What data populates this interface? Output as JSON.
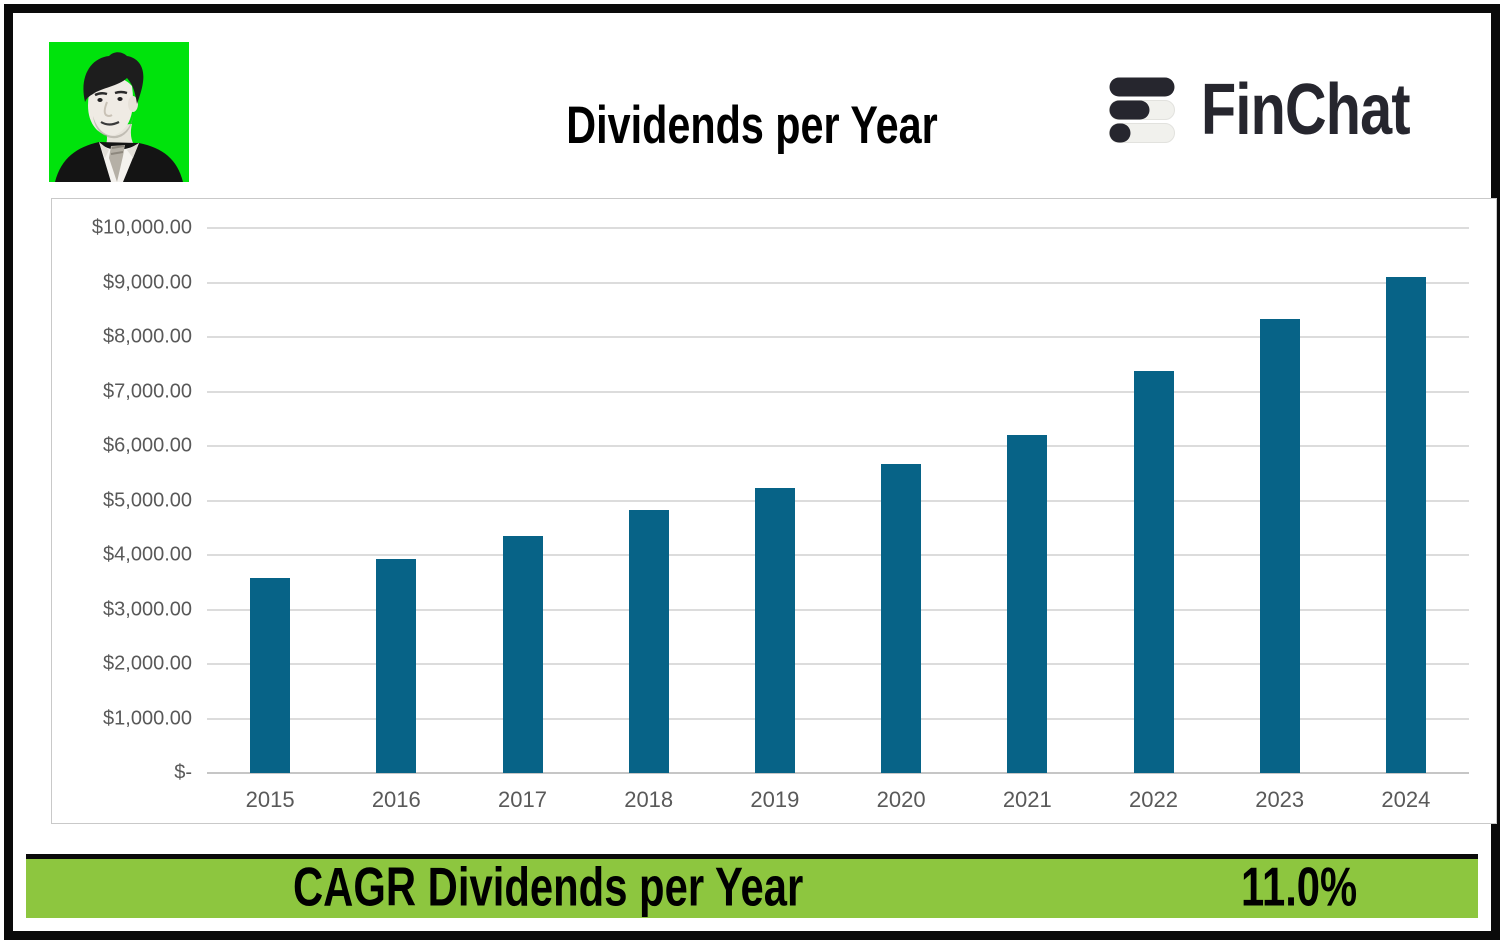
{
  "header": {
    "title": "Dividends per Year",
    "brand": "FinChat"
  },
  "chart_data": {
    "type": "bar",
    "title": "Dividends per Year",
    "categories": [
      "2015",
      "2016",
      "2017",
      "2018",
      "2019",
      "2020",
      "2021",
      "2022",
      "2023",
      "2024"
    ],
    "values": [
      3570,
      3930,
      4340,
      4830,
      5230,
      5670,
      6200,
      7370,
      8330,
      9110
    ],
    "series_name": "Dividends per Year",
    "xlabel": "",
    "ylabel": "",
    "ylim": [
      0,
      10000
    ],
    "ytick_step": 1000,
    "ytick_labels": [
      "$-",
      "$1,000.00",
      "$2,000.00",
      "$3,000.00",
      "$4,000.00",
      "$5,000.00",
      "$6,000.00",
      "$7,000.00",
      "$8,000.00",
      "$9,000.00",
      "$10,000.00"
    ],
    "grid": true,
    "legend": "none",
    "bar_color": "#076387"
  },
  "footer": {
    "label": "CAGR Dividends per Year",
    "value": "11.0%"
  },
  "colors": {
    "bar": "#076387",
    "footer_background": "#8dc63f",
    "frame_border": "#0a0a0a",
    "gridline": "#dcdcdc",
    "axis_text": "#595959",
    "brand_dark": "#26262e",
    "avatar_green": "#00e30c"
  }
}
